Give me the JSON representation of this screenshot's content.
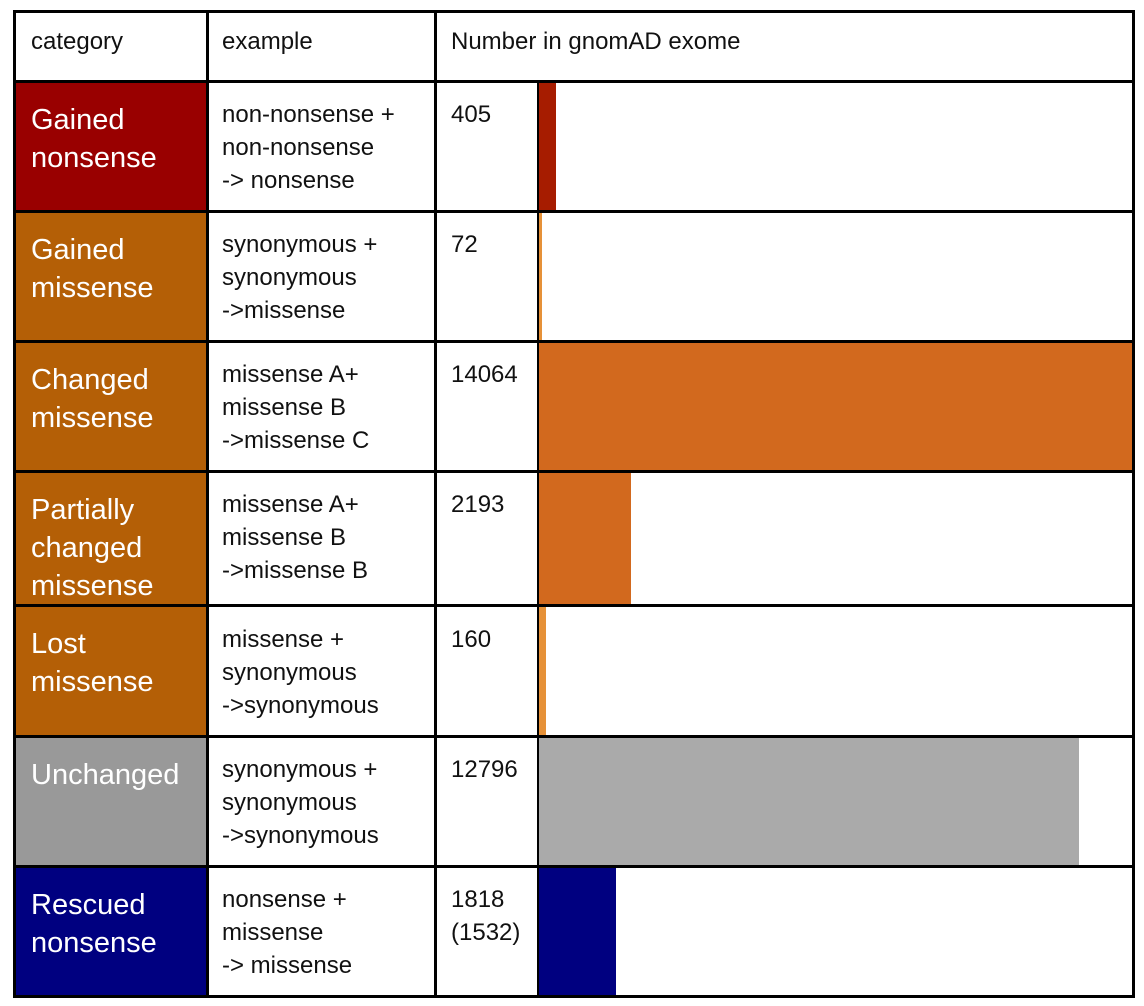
{
  "header": {
    "category": "category",
    "example": "example",
    "number": "Number in gnomAD exome"
  },
  "rows": [
    {
      "category": "Gained\nnonsense",
      "example": "non-nonsense +\nnon-nonsense\n-> nonsense",
      "number_text": "405",
      "color": "#990000"
    },
    {
      "category": "Gained\nmissense",
      "example": "synonymous +\nsynonymous\n->missense",
      "number_text": "72",
      "color": "#b45f06"
    },
    {
      "category": "Changed\nmissense",
      "example": "missense A+\nmissense B\n->missense C",
      "number_text": "14064",
      "color": "#b45f06"
    },
    {
      "category": "Partially\nchanged\nmissense",
      "example": "missense A+\nmissense B\n->missense B",
      "number_text": "2193",
      "color": "#b45f06"
    },
    {
      "category": "Lost\nmissense",
      "example": "missense +\nsynonymous\n->synonymous",
      "number_text": "160",
      "color": "#b45f06"
    },
    {
      "category": "Unchanged",
      "example": "synonymous +\nsynonymous\n->synonymous",
      "number_text": "12796",
      "color": "#999999"
    },
    {
      "category": "Rescued\nnonsense",
      "example": "nonsense +\nmissense\n-> missense",
      "number_text": "1818\n(1532)",
      "color": "#000080"
    }
  ],
  "chart_data": {
    "type": "bar",
    "orientation": "horizontal",
    "title": "Number in gnomAD exome",
    "categories": [
      "Gained nonsense",
      "Gained missense",
      "Changed missense",
      "Partially changed missense",
      "Lost missense",
      "Unchanged",
      "Rescued nonsense"
    ],
    "values": [
      405,
      72,
      14064,
      2193,
      160,
      12796,
      1818
    ],
    "bar_colors": [
      "#a61c00",
      "#e69138",
      "#d2691e",
      "#d2691e",
      "#e69138",
      "#aaaaaa",
      "#000080"
    ],
    "xlim": [
      0,
      14064
    ]
  }
}
